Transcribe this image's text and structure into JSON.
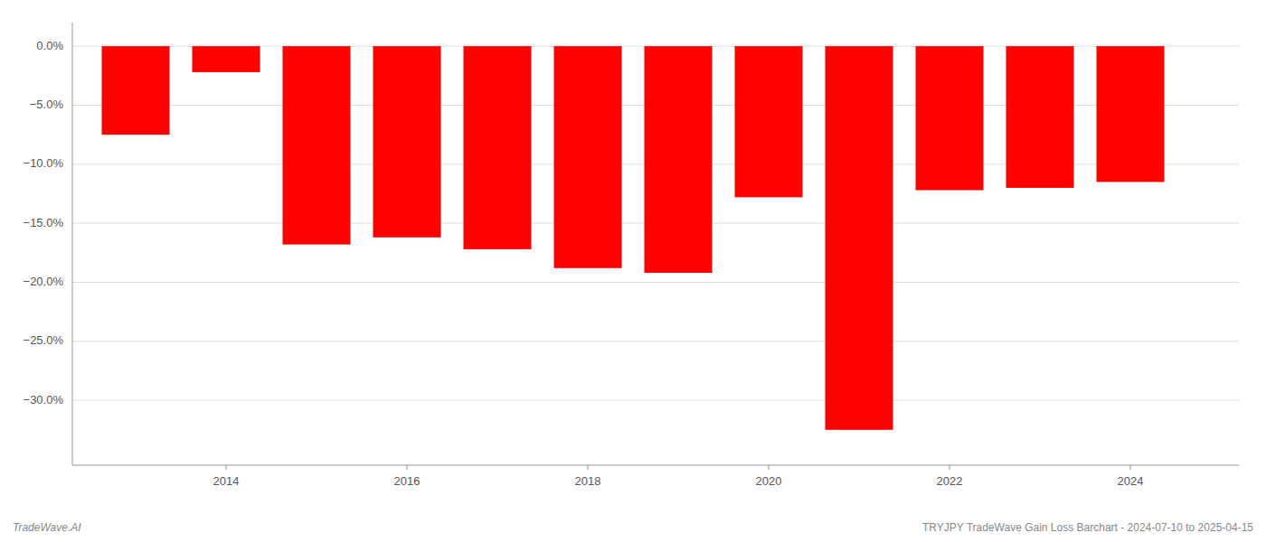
{
  "chart_data": {
    "type": "bar",
    "x": [
      2013,
      2014,
      2015,
      2016,
      2017,
      2018,
      2019,
      2020,
      2021,
      2022,
      2023,
      2024
    ],
    "values": [
      -7.5,
      -2.2,
      -16.8,
      -16.2,
      -17.2,
      -18.8,
      -19.2,
      -12.8,
      -32.5,
      -12.2,
      -12.0,
      -11.5
    ],
    "color": "#ff0000",
    "xlim": [
      2012.3,
      2025.2
    ],
    "xticks": [
      2014,
      2016,
      2018,
      2020,
      2022,
      2024
    ],
    "ylim": [
      -35.5,
      2.0
    ],
    "yticks": [
      {
        "value": 0.0,
        "label": "0.0%"
      },
      {
        "value": -5.0,
        "label": "−5.0%"
      },
      {
        "value": -10.0,
        "label": "−10.0%"
      },
      {
        "value": -15.0,
        "label": "−15.0%"
      },
      {
        "value": -20.0,
        "label": "−20.0%"
      },
      {
        "value": -25.0,
        "label": "−25.0%"
      },
      {
        "value": -30.0,
        "label": "−30.0%"
      }
    ],
    "grid": true,
    "annotations": [
      "TradeWave.AI",
      "TRYJPY TradeWave Gain Loss Barchart - 2024-07-10 to 2025-04-15"
    ]
  }
}
